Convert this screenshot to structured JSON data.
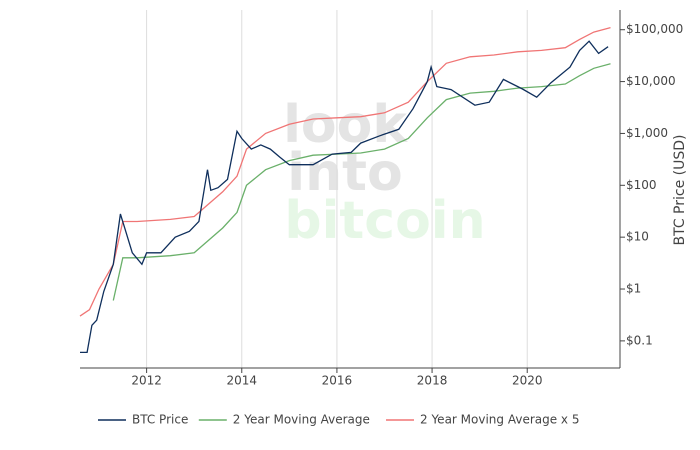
{
  "chart_data": {
    "type": "line",
    "y_label": "BTC Price (USD)",
    "watermark": [
      "look",
      "into",
      "bitcoin"
    ],
    "log_scale": true,
    "grid": "x",
    "legend": "bottom",
    "xlim": [
      2010.6,
      2021.95
    ],
    "xticks": [
      2012,
      2014,
      2016,
      2018,
      2020
    ],
    "ylim": [
      0.03,
      240000
    ],
    "yticks": [
      {
        "value": 0.1,
        "label": "$0.1"
      },
      {
        "value": 1,
        "label": "$1"
      },
      {
        "value": 10,
        "label": "$10"
      },
      {
        "value": 100,
        "label": "$100"
      },
      {
        "value": 1000,
        "label": "$1,000"
      },
      {
        "value": 10000,
        "label": "$10,000"
      },
      {
        "value": 100000,
        "label": "$100,000"
      }
    ],
    "series": [
      {
        "name": "BTC Price",
        "color": "#0f2f5c",
        "x": [
          2010.6,
          2010.75,
          2010.85,
          2010.95,
          2011.1,
          2011.3,
          2011.45,
          2011.55,
          2011.7,
          2011.9,
          2012.0,
          2012.3,
          2012.6,
          2012.9,
          2013.1,
          2013.28,
          2013.35,
          2013.5,
          2013.7,
          2013.9,
          2014.0,
          2014.2,
          2014.4,
          2014.6,
          2014.8,
          2015.0,
          2015.5,
          2015.9,
          2016.3,
          2016.5,
          2016.9,
          2017.3,
          2017.6,
          2017.9,
          2017.98,
          2018.1,
          2018.4,
          2018.9,
          2019.2,
          2019.5,
          2019.9,
          2020.2,
          2020.5,
          2020.9,
          2021.1,
          2021.3,
          2021.5,
          2021.7
        ],
        "values": [
          0.06,
          0.06,
          0.2,
          0.25,
          0.9,
          3,
          28,
          14,
          5,
          3,
          5,
          5,
          10,
          13,
          20,
          200,
          80,
          90,
          130,
          1100,
          800,
          500,
          600,
          500,
          350,
          250,
          250,
          400,
          430,
          650,
          900,
          1200,
          3000,
          10000,
          19000,
          8000,
          7000,
          3500,
          4000,
          11000,
          7200,
          5000,
          9500,
          19000,
          40000,
          60000,
          35000,
          47000
        ]
      },
      {
        "name": "2 Year Moving Average",
        "color": "#6ab06a",
        "x": [
          2011.3,
          2011.5,
          2011.8,
          2012.5,
          2013.0,
          2013.6,
          2013.9,
          2014.1,
          2014.5,
          2015.0,
          2015.5,
          2016.0,
          2016.5,
          2017.0,
          2017.5,
          2017.9,
          2018.3,
          2018.8,
          2019.3,
          2019.8,
          2020.3,
          2020.8,
          2021.1,
          2021.4,
          2021.75
        ],
        "values": [
          0.6,
          4,
          4,
          4.4,
          5,
          15,
          30,
          100,
          200,
          300,
          380,
          400,
          420,
          500,
          800,
          2000,
          4500,
          6000,
          6500,
          7500,
          8000,
          9000,
          13000,
          18000,
          22000
        ]
      },
      {
        "name": "2 Year Moving Average x 5",
        "color": "#f07575",
        "x": [
          2010.6,
          2010.8,
          2011.0,
          2011.3,
          2011.5,
          2011.8,
          2012.5,
          2013.0,
          2013.6,
          2013.9,
          2014.1,
          2014.5,
          2015.0,
          2015.5,
          2016.0,
          2016.5,
          2017.0,
          2017.5,
          2017.9,
          2018.3,
          2018.8,
          2019.3,
          2019.8,
          2020.3,
          2020.8,
          2021.1,
          2021.4,
          2021.75
        ],
        "values": [
          0.3,
          0.4,
          1,
          3,
          20,
          20,
          22,
          25,
          75,
          150,
          500,
          1000,
          1500,
          1900,
          2000,
          2100,
          2500,
          4000,
          10000,
          22500,
          30000,
          32500,
          37500,
          40000,
          45000,
          65000,
          90000,
          110000
        ]
      }
    ]
  }
}
